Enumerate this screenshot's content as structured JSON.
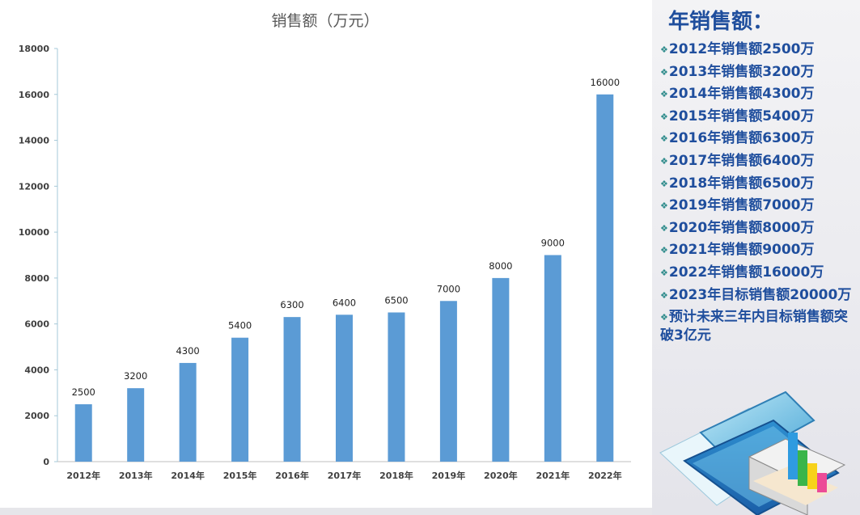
{
  "chart_data": {
    "type": "bar",
    "title": "销售额（万元）",
    "categories": [
      "2012年",
      "2013年",
      "2014年",
      "2015年",
      "2016年",
      "2017年",
      "2018年",
      "2019年",
      "2020年",
      "2021年",
      "2022年"
    ],
    "values": [
      2500,
      3200,
      4300,
      5400,
      6300,
      6400,
      6500,
      7000,
      8000,
      9000,
      16000
    ],
    "data_labels": [
      "2500",
      "3200",
      "4300",
      "5400",
      "6300",
      "6400",
      "6500",
      "7000",
      "8000",
      "9000",
      "16000"
    ],
    "y_ticks": [
      "0",
      "2000",
      "4000",
      "6000",
      "8000",
      "10000",
      "12000",
      "14000",
      "16000",
      "18000"
    ],
    "ylim": [
      0,
      18000
    ],
    "grid": false,
    "bar_color": "#5b9bd5"
  },
  "sidebar": {
    "title": "年销售额：",
    "bullet_glyph": "❖",
    "items": [
      "2012年销售额2500万",
      "2013年销售额3200万",
      "2014年销售额4300万",
      "2015年销售额5400万",
      "2016年销售额6300万",
      "2017年销售额6400万",
      "2018年销售额6500万",
      "2019年销售额7000万",
      "2020年销售额8000万",
      "2021年销售额9000万",
      "2022年销售额16000万",
      "2023年目标销售额20000万",
      "预计未来三年内目标销售额突破3亿元"
    ],
    "text_color": "#1f4e9d",
    "decoration_icon": "folder-bar-chart-icon"
  }
}
